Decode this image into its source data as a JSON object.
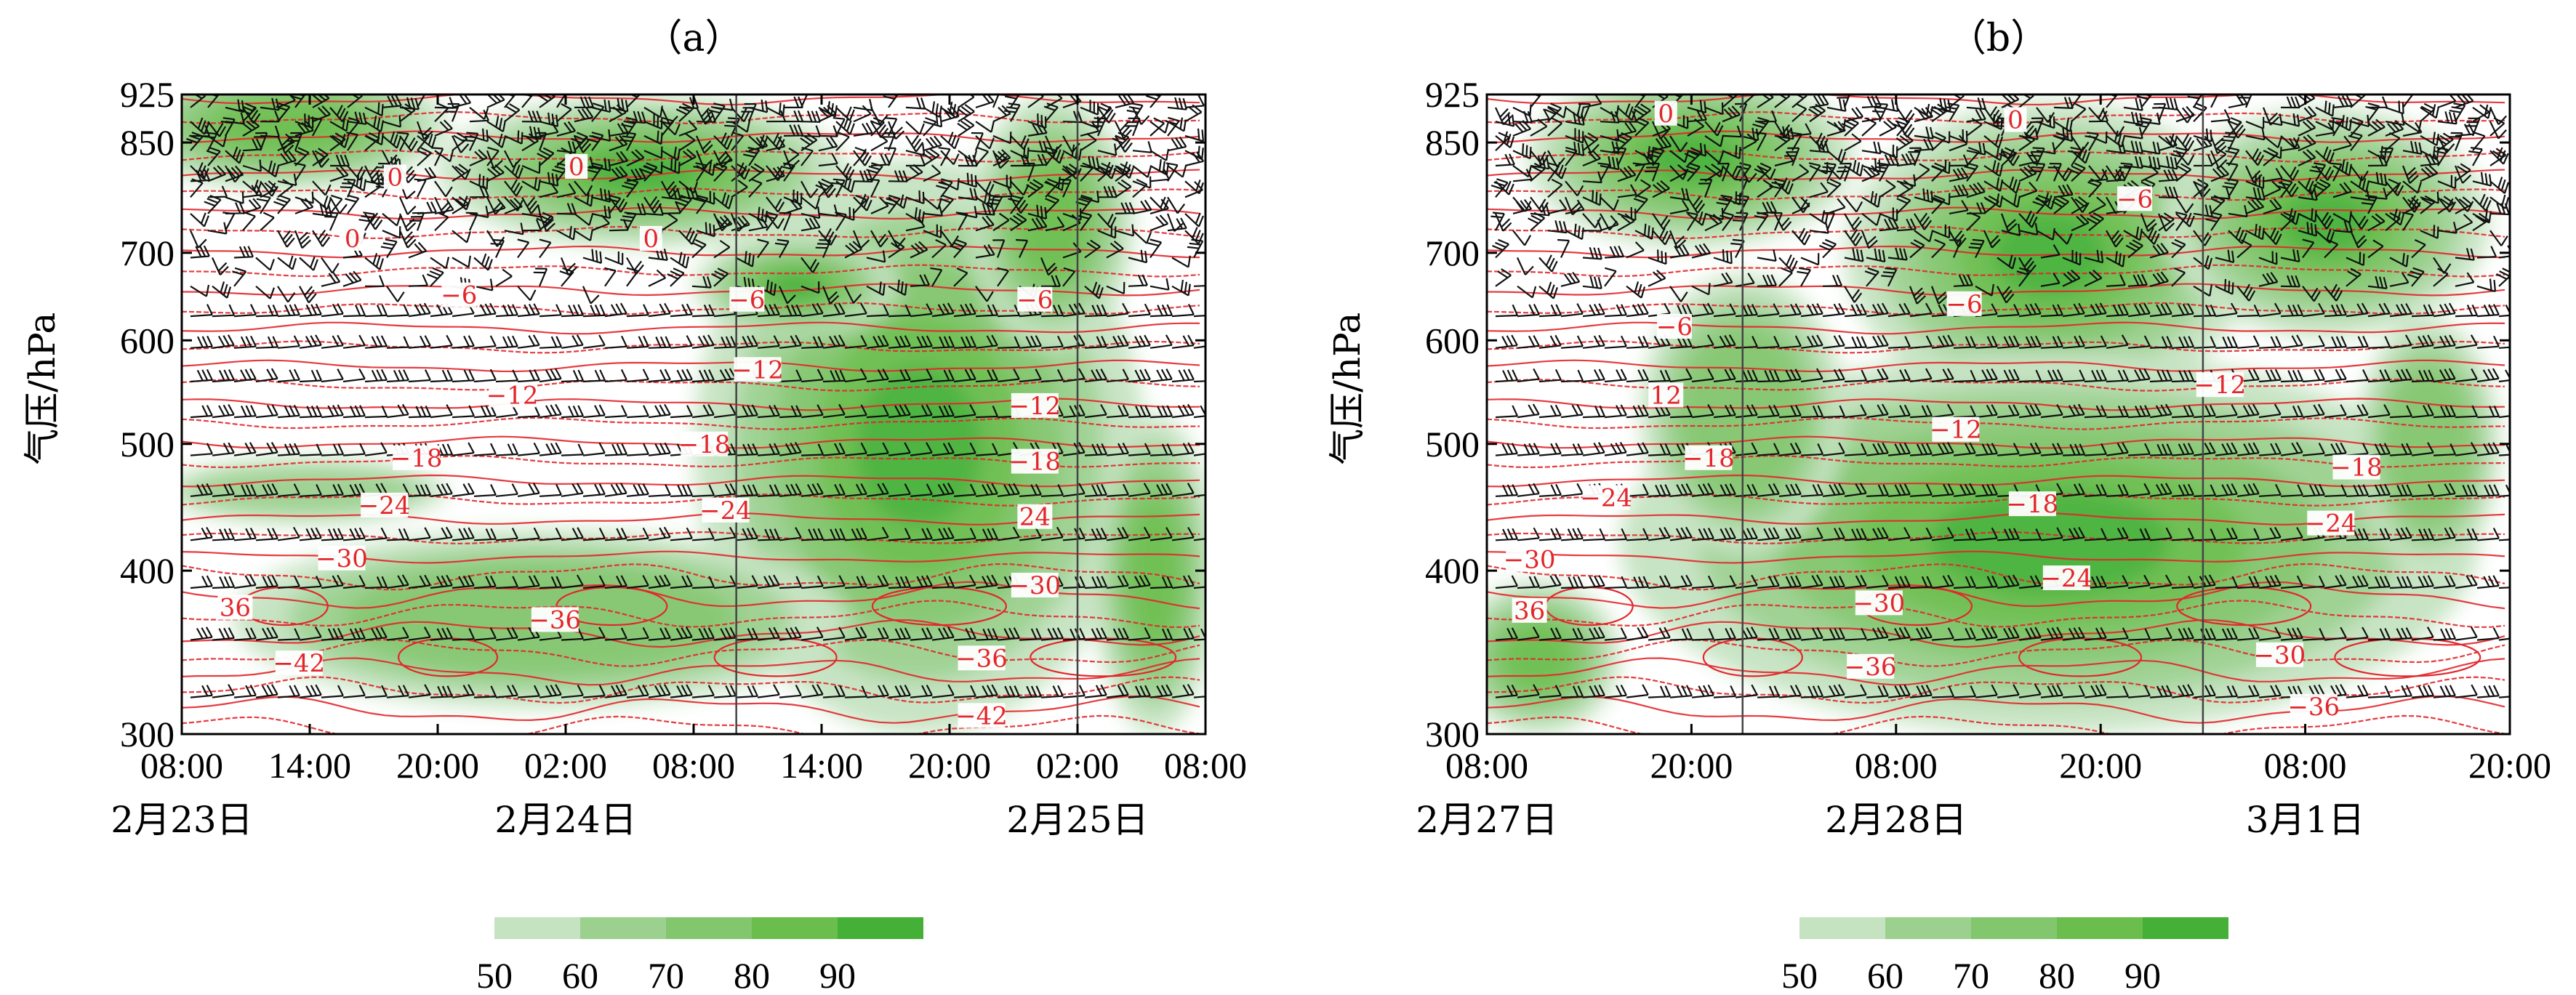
{
  "colors": {
    "humidity_ramp": [
      "#c5e3c1",
      "#9bd08f",
      "#82c66d",
      "#6bbd4e",
      "#45b038"
    ],
    "isotherm": "#e3262b",
    "wind_barb": "#111111",
    "axis": "#000000"
  },
  "chart_data": [
    {
      "type": "heatmap",
      "panel_label": "（a）",
      "ylabel": "气压/hPa",
      "y_scale": "log-pressure",
      "ylim": [
        925,
        300
      ],
      "y_ticks": [
        300,
        400,
        500,
        600,
        700,
        850,
        925
      ],
      "y_tick_labels": [
        "300",
        "400",
        "500",
        "600",
        "700",
        "850",
        "925"
      ],
      "x_range_hours": [
        0,
        48
      ],
      "x_ticks": [
        0,
        6,
        12,
        18,
        24,
        30,
        36,
        42,
        48
      ],
      "x_tick_labels": [
        "08:00",
        "14:00",
        "20:00",
        "02:00",
        "08:00",
        "14:00",
        "20:00",
        "02:00",
        "08:00"
      ],
      "date_labels": [
        {
          "hour": 0,
          "text": "2月23日"
        },
        {
          "hour": 18,
          "text": "2月24日"
        },
        {
          "hour": 42,
          "text": "2月25日"
        }
      ],
      "vertical_lines_hours": [
        26,
        42
      ],
      "isotherm_labels": [
        {
          "hour": 5.5,
          "p": 340,
          "text": "−42"
        },
        {
          "hour": 37.5,
          "p": 310,
          "text": "−42"
        },
        {
          "hour": 17.5,
          "p": 367,
          "text": "−36"
        },
        {
          "hour": 37.5,
          "p": 343,
          "text": "−36"
        },
        {
          "hour": 2.5,
          "p": 375,
          "text": "36"
        },
        {
          "hour": 7.5,
          "p": 409,
          "text": "−30"
        },
        {
          "hour": 40,
          "p": 390,
          "text": "−30"
        },
        {
          "hour": 9.5,
          "p": 449,
          "text": "−24"
        },
        {
          "hour": 25.5,
          "p": 445,
          "text": "−24"
        },
        {
          "hour": 40,
          "p": 440,
          "text": "24"
        },
        {
          "hour": 11,
          "p": 488,
          "text": "−18"
        },
        {
          "hour": 24.5,
          "p": 500,
          "text": "−18"
        },
        {
          "hour": 40,
          "p": 485,
          "text": "−18"
        },
        {
          "hour": 15.5,
          "p": 545,
          "text": "−12"
        },
        {
          "hour": 27,
          "p": 570,
          "text": "−12"
        },
        {
          "hour": 40,
          "p": 535,
          "text": "−12"
        },
        {
          "hour": 13,
          "p": 650,
          "text": "−6"
        },
        {
          "hour": 26.5,
          "p": 645,
          "text": "−6"
        },
        {
          "hour": 40,
          "p": 645,
          "text": "−6"
        },
        {
          "hour": 8,
          "p": 718,
          "text": "0"
        },
        {
          "hour": 22,
          "p": 718,
          "text": "0"
        },
        {
          "hour": 10,
          "p": 800,
          "text": "0"
        },
        {
          "hour": 18.5,
          "p": 815,
          "text": "0"
        }
      ]
    },
    {
      "type": "heatmap",
      "panel_label": "（b）",
      "ylabel": "气压/hPa",
      "y_scale": "log-pressure",
      "ylim": [
        925,
        300
      ],
      "y_ticks": [
        300,
        400,
        500,
        600,
        700,
        850,
        925
      ],
      "y_tick_labels": [
        "300",
        "400",
        "500",
        "600",
        "700",
        "850",
        "925"
      ],
      "x_range_hours": [
        0,
        60
      ],
      "x_ticks": [
        0,
        12,
        24,
        36,
        48,
        60
      ],
      "x_tick_labels": [
        "08:00",
        "20:00",
        "08:00",
        "20:00",
        "08:00",
        "20:00"
      ],
      "date_labels": [
        {
          "hour": 0,
          "text": "2月27日"
        },
        {
          "hour": 24,
          "text": "2月28日"
        },
        {
          "hour": 48,
          "text": "3月1日"
        }
      ],
      "vertical_lines_hours": [
        15,
        42
      ],
      "isotherm_labels": [
        {
          "hour": 22.5,
          "p": 338,
          "text": "−36"
        },
        {
          "hour": 48.5,
          "p": 315,
          "text": "−36"
        },
        {
          "hour": 2.5,
          "p": 373,
          "text": "36"
        },
        {
          "hour": 23,
          "p": 378,
          "text": "−30"
        },
        {
          "hour": 46.5,
          "p": 345,
          "text": "−30"
        },
        {
          "hour": 2.5,
          "p": 408,
          "text": "−30"
        },
        {
          "hour": 34,
          "p": 395,
          "text": "−24"
        },
        {
          "hour": 49.5,
          "p": 435,
          "text": "−24"
        },
        {
          "hour": 7,
          "p": 455,
          "text": "−24"
        },
        {
          "hour": 32,
          "p": 450,
          "text": "−18"
        },
        {
          "hour": 51,
          "p": 480,
          "text": "−18"
        },
        {
          "hour": 13,
          "p": 488,
          "text": "−18"
        },
        {
          "hour": 27.5,
          "p": 513,
          "text": "−12"
        },
        {
          "hour": 43,
          "p": 555,
          "text": "−12"
        },
        {
          "hour": 10.5,
          "p": 545,
          "text": "12"
        },
        {
          "hour": 11,
          "p": 615,
          "text": "−6"
        },
        {
          "hour": 28,
          "p": 640,
          "text": "−6"
        },
        {
          "hour": 38,
          "p": 770,
          "text": "−6"
        },
        {
          "hour": 10.5,
          "p": 895,
          "text": "0"
        },
        {
          "hour": 31,
          "p": 885,
          "text": "0"
        }
      ]
    }
  ],
  "colorbar": {
    "ticks": [
      "50",
      "60",
      "70",
      "80",
      "90"
    ]
  }
}
